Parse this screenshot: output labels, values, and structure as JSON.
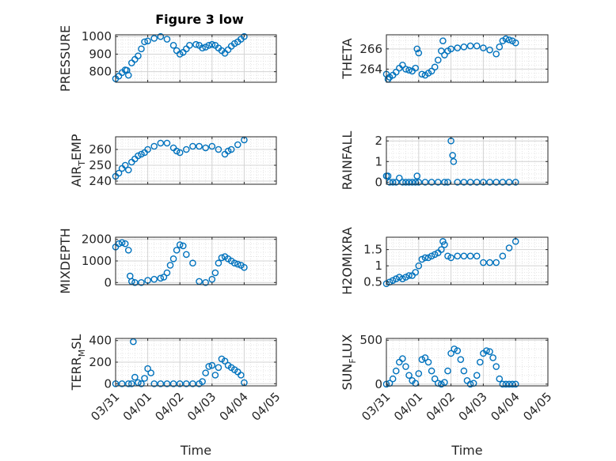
{
  "figure_title": "Figure 3 low",
  "colors": {
    "marker": "#0072BD",
    "axis": "#262626",
    "grid": "#dfdfdf"
  },
  "chart_data": [
    {
      "type": "scatter",
      "ylabel": "PRESSURE",
      "xlabel": "",
      "ylim": [
        740,
        1010
      ],
      "yticks": [
        800,
        900,
        1000
      ],
      "ytick_labels": [
        "800",
        "900",
        "1000"
      ],
      "xlim": [
        0,
        5
      ],
      "xticks": [
        0,
        1,
        2,
        3,
        4,
        5
      ],
      "xtick_labels": [
        "",
        "",
        "",
        "",
        "",
        ""
      ],
      "grid": true,
      "minor_grid": true,
      "series": [
        {
          "x": [
            0.0,
            0.1,
            0.2,
            0.3,
            0.35,
            0.4,
            0.5,
            0.6,
            0.7,
            0.8,
            0.9,
            1.0,
            1.2,
            1.4,
            1.6,
            1.8,
            1.9,
            2.0,
            2.1,
            2.2,
            2.3,
            2.5,
            2.6,
            2.7,
            2.8,
            2.9,
            3.0,
            3.1,
            3.2,
            3.3,
            3.4,
            3.5,
            3.6,
            3.7,
            3.8,
            3.9,
            4.0
          ],
          "y": [
            760,
            775,
            795,
            810,
            808,
            780,
            850,
            870,
            890,
            930,
            970,
            975,
            990,
            1000,
            985,
            950,
            920,
            900,
            910,
            930,
            950,
            955,
            950,
            935,
            940,
            950,
            955,
            950,
            935,
            920,
            905,
            925,
            945,
            960,
            970,
            985,
            1000
          ]
        }
      ]
    },
    {
      "type": "scatter",
      "ylabel": "THETA",
      "xlabel": "",
      "ylim": [
        262.7,
        267.4
      ],
      "yticks": [
        264,
        266
      ],
      "ytick_labels": [
        "264",
        "266"
      ],
      "xlim": [
        0,
        5
      ],
      "xticks": [
        0,
        1,
        2,
        3,
        4,
        5
      ],
      "xtick_labels": [
        "",
        "",
        "",
        "",
        "",
        ""
      ],
      "grid": true,
      "minor_grid": true,
      "series": [
        {
          "x": [
            0.0,
            0.05,
            0.1,
            0.2,
            0.3,
            0.4,
            0.5,
            0.6,
            0.7,
            0.8,
            0.9,
            0.95,
            1.0,
            1.1,
            1.2,
            1.3,
            1.4,
            1.5,
            1.6,
            1.7,
            1.75,
            1.8,
            1.9,
            2.0,
            2.2,
            2.4,
            2.6,
            2.8,
            3.0,
            3.2,
            3.4,
            3.5,
            3.6,
            3.7,
            3.8,
            3.9,
            4.0
          ],
          "y": [
            263.5,
            263.0,
            263.2,
            263.4,
            263.7,
            264.1,
            264.4,
            264.0,
            263.9,
            263.8,
            264.1,
            266.0,
            265.6,
            263.5,
            263.4,
            263.6,
            263.8,
            264.2,
            264.9,
            265.8,
            266.8,
            265.4,
            265.8,
            266.0,
            266.1,
            266.2,
            266.3,
            266.3,
            266.1,
            265.9,
            265.5,
            266.2,
            266.8,
            267.0,
            266.9,
            266.8,
            266.6
          ]
        }
      ]
    },
    {
      "type": "scatter",
      "ylabel": "AIR_TEMP",
      "xlabel": "",
      "ylim": [
        238,
        268
      ],
      "yticks": [
        240,
        250,
        260
      ],
      "ytick_labels": [
        "240",
        "250",
        "260"
      ],
      "xlim": [
        0,
        5
      ],
      "xticks": [
        0,
        1,
        2,
        3,
        4,
        5
      ],
      "xtick_labels": [
        "",
        "",
        "",
        "",
        "",
        ""
      ],
      "grid": true,
      "minor_grid": true,
      "series": [
        {
          "x": [
            0.0,
            0.1,
            0.2,
            0.3,
            0.4,
            0.5,
            0.6,
            0.7,
            0.8,
            0.9,
            1.0,
            1.2,
            1.4,
            1.6,
            1.8,
            1.9,
            2.0,
            2.2,
            2.4,
            2.6,
            2.8,
            3.0,
            3.2,
            3.4,
            3.5,
            3.6,
            3.8,
            4.0
          ],
          "y": [
            243,
            245,
            248,
            250,
            247,
            252,
            254,
            256,
            257,
            258,
            260,
            262,
            264,
            264,
            261,
            259,
            258,
            260,
            262,
            262,
            261,
            262,
            260,
            257,
            259,
            260,
            263,
            266
          ]
        }
      ]
    },
    {
      "type": "scatter",
      "ylabel": "RAINFALL",
      "xlabel": "",
      "ylim": [
        -0.1,
        2.2
      ],
      "yticks": [
        0,
        1,
        2
      ],
      "ytick_labels": [
        "0",
        "1",
        "2"
      ],
      "xlim": [
        0,
        5
      ],
      "xticks": [
        0,
        1,
        2,
        3,
        4,
        5
      ],
      "xtick_labels": [
        "",
        "",
        "",
        "",
        "",
        ""
      ],
      "grid": true,
      "minor_grid": true,
      "series": [
        {
          "x": [
            0.0,
            0.05,
            0.1,
            0.2,
            0.3,
            0.4,
            0.5,
            0.6,
            0.7,
            0.8,
            0.9,
            0.95,
            1.0,
            1.2,
            1.4,
            1.6,
            1.8,
            1.9,
            2.0,
            2.05,
            2.08,
            2.2,
            2.4,
            2.6,
            2.8,
            3.0,
            3.2,
            3.4,
            3.6,
            3.8,
            4.0
          ],
          "y": [
            0.3,
            0.3,
            0.0,
            0.0,
            0.0,
            0.2,
            0.0,
            0.0,
            0.0,
            0.0,
            0.0,
            0.3,
            0.0,
            0.0,
            0.0,
            0.0,
            0.0,
            0.0,
            2.0,
            1.3,
            1.0,
            0.0,
            0.0,
            0.0,
            0.0,
            0.0,
            0.0,
            0.0,
            0.0,
            0.0,
            0.0
          ]
        }
      ]
    },
    {
      "type": "scatter",
      "ylabel": "MIXDEPTH",
      "xlabel": "",
      "ylim": [
        -100,
        2100
      ],
      "yticks": [
        0,
        1000,
        2000
      ],
      "ytick_labels": [
        "0",
        "1000",
        "2000"
      ],
      "xlim": [
        0,
        5
      ],
      "xticks": [
        0,
        1,
        2,
        3,
        4,
        5
      ],
      "xtick_labels": [
        "",
        "",
        "",
        "",
        "",
        ""
      ],
      "grid": true,
      "minor_grid": true,
      "series": [
        {
          "x": [
            0.0,
            0.1,
            0.2,
            0.3,
            0.4,
            0.45,
            0.5,
            0.6,
            0.8,
            1.0,
            1.2,
            1.4,
            1.5,
            1.6,
            1.7,
            1.8,
            1.9,
            2.0,
            2.1,
            2.2,
            2.4,
            2.6,
            2.8,
            3.0,
            3.1,
            3.2,
            3.3,
            3.4,
            3.5,
            3.6,
            3.7,
            3.8,
            3.9,
            4.0
          ],
          "y": [
            1650,
            1800,
            1850,
            1800,
            1500,
            300,
            50,
            0,
            0,
            100,
            150,
            200,
            250,
            450,
            800,
            1100,
            1500,
            1750,
            1700,
            1300,
            900,
            50,
            0,
            150,
            450,
            900,
            1150,
            1200,
            1100,
            1000,
            900,
            850,
            800,
            700
          ]
        }
      ]
    },
    {
      "type": "scatter",
      "ylabel": "H2OMIXRA",
      "xlabel": "",
      "ylim": [
        0.42,
        1.88
      ],
      "yticks": [
        0.5,
        1.0,
        1.5
      ],
      "ytick_labels": [
        "0.5",
        "1",
        "1.5"
      ],
      "xlim": [
        0,
        5
      ],
      "xticks": [
        0,
        1,
        2,
        3,
        4,
        5
      ],
      "xtick_labels": [
        "",
        "",
        "",
        "",
        "",
        ""
      ],
      "grid": true,
      "minor_grid": true,
      "series": [
        {
          "x": [
            0.0,
            0.1,
            0.2,
            0.3,
            0.4,
            0.5,
            0.6,
            0.7,
            0.8,
            0.9,
            1.0,
            1.1,
            1.2,
            1.3,
            1.4,
            1.5,
            1.6,
            1.7,
            1.75,
            1.8,
            1.9,
            2.0,
            2.2,
            2.4,
            2.6,
            2.8,
            3.0,
            3.2,
            3.4,
            3.6,
            3.8,
            4.0
          ],
          "y": [
            0.45,
            0.5,
            0.55,
            0.6,
            0.65,
            0.6,
            0.65,
            0.7,
            0.7,
            0.8,
            1.0,
            1.2,
            1.25,
            1.25,
            1.3,
            1.35,
            1.4,
            1.5,
            1.75,
            1.65,
            1.3,
            1.25,
            1.3,
            1.3,
            1.3,
            1.3,
            1.1,
            1.1,
            1.1,
            1.3,
            1.55,
            1.75
          ]
        }
      ]
    },
    {
      "type": "scatter",
      "ylabel": "TERR_MSL",
      "xlabel": "Time",
      "ylim": [
        -20,
        420
      ],
      "yticks": [
        0,
        200,
        400
      ],
      "ytick_labels": [
        "0",
        "200",
        "400"
      ],
      "xlim": [
        0,
        5
      ],
      "xticks": [
        0,
        1,
        2,
        3,
        4,
        5
      ],
      "xtick_labels": [
        "03/31",
        "04/01",
        "04/02",
        "04/03",
        "04/04",
        "04/05"
      ],
      "grid": true,
      "minor_grid": true,
      "series": [
        {
          "x": [
            0.0,
            0.2,
            0.4,
            0.5,
            0.55,
            0.6,
            0.7,
            0.8,
            0.9,
            1.0,
            1.1,
            1.2,
            1.4,
            1.6,
            1.8,
            2.0,
            2.2,
            2.4,
            2.6,
            2.7,
            2.8,
            2.9,
            3.0,
            3.1,
            3.2,
            3.3,
            3.4,
            3.5,
            3.6,
            3.7,
            3.8,
            3.9,
            4.0
          ],
          "y": [
            0,
            0,
            0,
            0,
            390,
            60,
            10,
            0,
            50,
            140,
            100,
            0,
            0,
            0,
            0,
            0,
            0,
            0,
            0,
            20,
            100,
            160,
            170,
            80,
            150,
            230,
            210,
            170,
            150,
            130,
            110,
            80,
            10
          ]
        }
      ]
    },
    {
      "type": "scatter",
      "ylabel": "SUN_FLUX",
      "xlabel": "Time",
      "ylim": [
        -20,
        520
      ],
      "yticks": [
        0,
        500
      ],
      "ytick_labels": [
        "0",
        "500"
      ],
      "xlim": [
        0,
        5
      ],
      "xticks": [
        0,
        1,
        2,
        3,
        4,
        5
      ],
      "xtick_labels": [
        "03/31",
        "04/01",
        "04/02",
        "04/03",
        "04/04",
        "04/05"
      ],
      "grid": true,
      "minor_grid": true,
      "series": [
        {
          "x": [
            0.0,
            0.1,
            0.2,
            0.3,
            0.4,
            0.5,
            0.6,
            0.7,
            0.8,
            0.9,
            1.0,
            1.1,
            1.2,
            1.3,
            1.4,
            1.5,
            1.6,
            1.7,
            1.8,
            1.9,
            2.0,
            2.1,
            2.2,
            2.3,
            2.4,
            2.5,
            2.6,
            2.7,
            2.8,
            2.9,
            3.0,
            3.1,
            3.2,
            3.3,
            3.4,
            3.5,
            3.6,
            3.7,
            3.8,
            3.9,
            4.0
          ],
          "y": [
            0,
            10,
            60,
            150,
            250,
            290,
            200,
            100,
            40,
            10,
            120,
            280,
            300,
            250,
            150,
            60,
            10,
            0,
            20,
            150,
            350,
            400,
            380,
            280,
            150,
            40,
            0,
            10,
            100,
            250,
            350,
            380,
            370,
            300,
            200,
            60,
            0,
            0,
            0,
            0,
            0
          ]
        }
      ]
    }
  ]
}
